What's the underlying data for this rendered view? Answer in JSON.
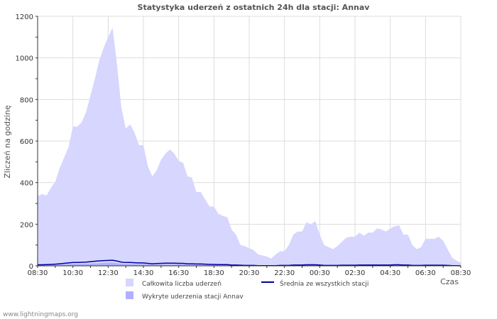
{
  "footer": "www.lightningmaps.org",
  "chart_data": {
    "type": "area",
    "title": "Statystyka uderzeń z ostatnich 24h dla stacji: Annav",
    "xlabel": "Czas",
    "ylabel": "Zliczeń na godzinę",
    "ylim": [
      0,
      1200
    ],
    "yticks": [
      0,
      200,
      400,
      600,
      800,
      1000,
      1200
    ],
    "xlim": [
      0,
      24
    ],
    "x_tick_labels": [
      "08:30",
      "10:30",
      "12:30",
      "14:30",
      "16:30",
      "18:30",
      "20:30",
      "22:30",
      "00:30",
      "02:30",
      "04:30",
      "06:30",
      "08:30"
    ],
    "grid": true,
    "colors": {
      "total": "#d6d6ff",
      "detected": "#b0b0ff",
      "average": "#0000a0",
      "grid": "#dddddd"
    },
    "x": [
      0,
      0.25,
      0.5,
      0.75,
      1,
      1.25,
      1.5,
      1.75,
      2,
      2.25,
      2.5,
      2.75,
      3,
      3.25,
      3.5,
      3.75,
      4,
      4.25,
      4.5,
      4.75,
      5,
      5.25,
      5.5,
      5.75,
      6,
      6.25,
      6.5,
      6.75,
      7,
      7.25,
      7.5,
      7.75,
      8,
      8.25,
      8.5,
      8.75,
      9,
      9.25,
      9.5,
      9.75,
      10,
      10.25,
      10.5,
      10.75,
      11,
      11.25,
      11.5,
      11.75,
      12,
      12.25,
      12.5,
      12.75,
      13,
      13.25,
      13.5,
      13.75,
      14,
      14.25,
      14.5,
      14.75,
      15,
      15.25,
      15.5,
      15.75,
      16,
      16.25,
      16.5,
      16.75,
      17,
      17.25,
      17.5,
      17.75,
      18,
      18.25,
      18.5,
      18.75,
      19,
      19.25,
      19.5,
      19.75,
      20,
      20.25,
      20.5,
      20.75,
      21,
      21.25,
      21.5,
      21.75,
      22,
      22.25,
      22.5,
      22.75,
      23,
      23.25,
      23.5,
      23.75,
      24
    ],
    "series": [
      {
        "name": "Całkowita liczba uderzeń",
        "values": [
          335,
          345,
          338,
          375,
          405,
          470,
          520,
          570,
          670,
          670,
          690,
          740,
          820,
          900,
          990,
          1050,
          1100,
          1145,
          970,
          760,
          660,
          680,
          640,
          580,
          580,
          480,
          430,
          460,
          510,
          540,
          560,
          540,
          505,
          495,
          430,
          425,
          355,
          355,
          320,
          285,
          285,
          250,
          240,
          235,
          175,
          150,
          100,
          95,
          85,
          75,
          55,
          50,
          45,
          35,
          55,
          70,
          70,
          100,
          150,
          165,
          165,
          210,
          200,
          215,
          150,
          100,
          90,
          80,
          95,
          115,
          135,
          140,
          140,
          160,
          145,
          160,
          160,
          180,
          175,
          165,
          180,
          190,
          195,
          150,
          150,
          100,
          80,
          90,
          130,
          130,
          130,
          140,
          120,
          80,
          40,
          25,
          15
        ]
      },
      {
        "name": "Wykryte uderzenia stacji Annav",
        "values": [
          3,
          3,
          4,
          4,
          5,
          6,
          7,
          8,
          9,
          9,
          9,
          10,
          11,
          12,
          13,
          14,
          15,
          15,
          13,
          10,
          9,
          9,
          8,
          8,
          8,
          7,
          6,
          6,
          7,
          7,
          7,
          7,
          7,
          7,
          6,
          6,
          5,
          5,
          4,
          4,
          4,
          3,
          3,
          3,
          2,
          2,
          1,
          1,
          1,
          1,
          1,
          1,
          1,
          0,
          1,
          1,
          1,
          1,
          2,
          2,
          2,
          3,
          3,
          3,
          2,
          1,
          1,
          1,
          1,
          1,
          2,
          2,
          2,
          2,
          2,
          2,
          2,
          2,
          2,
          2,
          2,
          3,
          3,
          2,
          2,
          1,
          1,
          1,
          2,
          2,
          2,
          2,
          2,
          1,
          1,
          0,
          0
        ]
      },
      {
        "name": "Średnia ze wszystkich stacji",
        "values": [
          5,
          5,
          6,
          7,
          8,
          10,
          12,
          14,
          16,
          16,
          17,
          18,
          20,
          22,
          24,
          25,
          26,
          27,
          23,
          18,
          16,
          16,
          15,
          14,
          14,
          12,
          10,
          11,
          12,
          13,
          13,
          13,
          12,
          12,
          10,
          10,
          9,
          9,
          8,
          7,
          7,
          6,
          6,
          6,
          4,
          4,
          3,
          2,
          2,
          2,
          1,
          1,
          1,
          1,
          1,
          2,
          2,
          2,
          4,
          4,
          4,
          5,
          5,
          5,
          4,
          2,
          2,
          2,
          2,
          3,
          3,
          3,
          3,
          4,
          4,
          4,
          4,
          4,
          4,
          4,
          4,
          5,
          5,
          4,
          4,
          2,
          2,
          2,
          3,
          3,
          3,
          3,
          3,
          2,
          1,
          1,
          0
        ]
      }
    ],
    "legend": {
      "total": "Całkowita liczba uderzeń",
      "detected": "Wykryte uderzenia stacji Annav",
      "average": "Średnia ze wszystkich stacji"
    }
  }
}
